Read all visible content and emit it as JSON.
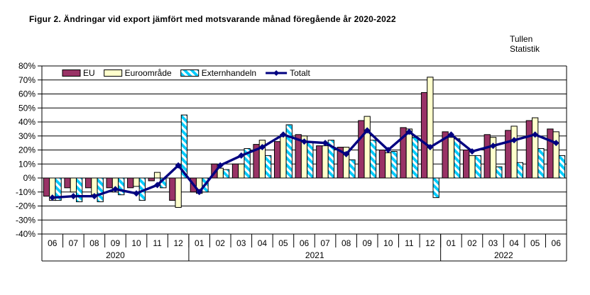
{
  "title": "Figur 2. Ändringar vid export jämfört med motsvarande månad föregående år 2020-2022",
  "branding": {
    "line1": "Tullen",
    "line2": "Statistik"
  },
  "legend": [
    {
      "label": "EU",
      "type": "bar",
      "color": "#993366"
    },
    {
      "label": "Euroområde",
      "type": "bar",
      "color": "#FFFFCC"
    },
    {
      "label": "Externhandeln",
      "type": "bar",
      "color": "#00CCFF",
      "pattern": "diagonal-stripes"
    },
    {
      "label": "Totalt",
      "type": "line",
      "color": "#000080"
    }
  ],
  "chart_data": {
    "type": "bar",
    "title": "Figur 2. Ändringar vid export jämfört med motsvarande månad föregående år 2020-2022",
    "ylabel": "",
    "xlabel": "",
    "ylim": [
      -40,
      80
    ],
    "ytick_step": 10,
    "ytick_suffix": "%",
    "grid": true,
    "legend_position": "top-left-inside",
    "x_months": [
      "06",
      "07",
      "08",
      "09",
      "10",
      "11",
      "12",
      "01",
      "02",
      "03",
      "04",
      "05",
      "06",
      "07",
      "08",
      "09",
      "10",
      "11",
      "12",
      "01",
      "02",
      "03",
      "04",
      "05",
      "06"
    ],
    "year_groups": [
      {
        "label": "2020",
        "count": 7
      },
      {
        "label": "2021",
        "count": 12
      },
      {
        "label": "2022",
        "count": 6
      }
    ],
    "series": [
      {
        "name": "EU",
        "type": "bar",
        "color": "#993366",
        "values": [
          -13,
          -7,
          -7,
          -7,
          -7,
          -2,
          -16,
          -10,
          10,
          10,
          24,
          26,
          31,
          23,
          22,
          41,
          20,
          36,
          61,
          33,
          20,
          31,
          34,
          41,
          35
        ]
      },
      {
        "name": "Euroområde",
        "type": "bar",
        "color": "#FFFFCC",
        "values": [
          -16,
          -10,
          -12,
          -10,
          -6,
          4,
          -21,
          -11,
          7,
          10,
          27,
          31,
          30,
          23,
          22,
          44,
          18,
          35,
          72,
          29,
          16,
          29,
          37,
          43,
          33
        ]
      },
      {
        "name": "Externhandeln",
        "type": "bar",
        "color": "#00CCFF",
        "pattern": "diagonal-stripes",
        "values": [
          -16,
          -17,
          -17,
          -12,
          -16,
          -7,
          45,
          -10,
          6,
          21,
          16,
          38,
          26,
          27,
          13,
          27,
          19,
          29,
          -14,
          28,
          16,
          8,
          11,
          21,
          16
        ]
      },
      {
        "name": "Totalt",
        "type": "line",
        "color": "#000080",
        "values": [
          -14,
          -13,
          -13,
          -8,
          -11,
          -5,
          9,
          -10,
          9,
          16,
          22,
          31,
          26,
          25,
          17,
          34,
          20,
          33,
          22,
          31,
          19,
          23,
          27,
          31,
          25
        ]
      }
    ]
  }
}
